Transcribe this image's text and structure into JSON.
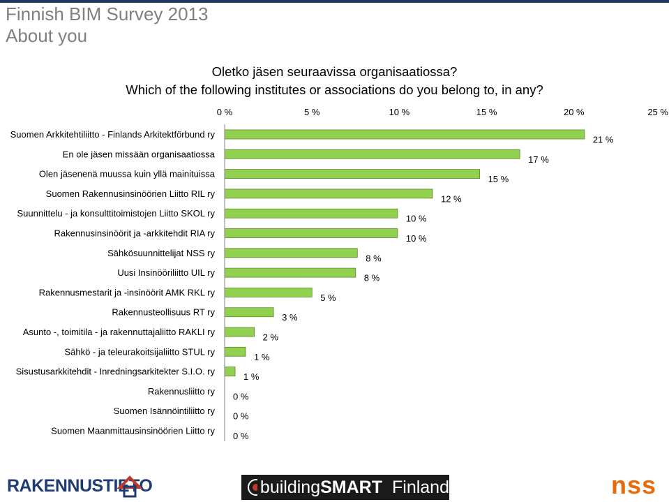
{
  "header": {
    "title_line1": "Finnish BIM Survey 2013",
    "title_line2": "About you"
  },
  "colors": {
    "bar_fill": "#92d050",
    "bar_stroke": "#5a8a2a",
    "header_text": "#7f7f7f",
    "header_rule": "#1f3864"
  },
  "chart_data": {
    "type": "bar",
    "orientation": "horizontal",
    "title": "Oletko jäsen seuraavissa organisaatiossa?",
    "subtitle": "Which of the following institutes or associations do you belong to, in any?",
    "x_axis_position": "top",
    "xlim": [
      0,
      25
    ],
    "x_ticks": [
      0,
      5,
      10,
      15,
      20,
      25
    ],
    "tick_labels": [
      "0 %",
      "5 %",
      "10 %",
      "15 %",
      "20 %",
      "25 %"
    ],
    "grid": false,
    "categories": [
      "Suomen Arkkitehtiliitto - Finlands Arkitektförbund ry",
      "En ole jäsen missään organisaatiossa",
      "Olen jäsenenä muussa kuin yllä mainituissa",
      "Suomen Rakennusinsinöörien Liitto RIL ry",
      "Suunnittelu - ja konsulttitoimistojen Liitto SKOL ry",
      "Rakennusinsinöörit ja -arkkitehdit RIA ry",
      "Sähkösuunnittelijat NSS ry",
      "Uusi Insinööriliitto UIL ry",
      "Rakennusmestarit ja -insinöörit AMK RKL ry",
      "Rakennusteollisuus RT ry",
      "Asunto -, toimitila - ja rakennuttajaliitto RAKLI ry",
      "Sähkö - ja teleurakoitsijaliitto STUL ry",
      "Sisustusarkkitehdit - Inredningsarkitekter S.I.O. ry",
      "Rakennusliitto ry",
      "Suomen Isännöintiliitto ry",
      "Suomen Maanmittausinsinöörien Liitto ry"
    ],
    "values": [
      20.6,
      16.9,
      14.6,
      11.9,
      9.9,
      9.9,
      7.6,
      7.5,
      5.0,
      2.8,
      1.7,
      1.2,
      0.6,
      0.0,
      0.0,
      0.0
    ],
    "data_labels": [
      "21 %",
      "17 %",
      "15 %",
      "12 %",
      "10 %",
      "10 %",
      "8 %",
      "8 %",
      "5 %",
      "3 %",
      "2 %",
      "1 %",
      "1 %",
      "0 %",
      "0 %",
      "0 %"
    ]
  },
  "logos": {
    "rakennustieto": "RAKENNUSTIETO",
    "buildingsmart_part1": "building",
    "buildingsmart_part2": "SMART",
    "buildingsmart_part3": "Finland",
    "nss": "nss"
  }
}
